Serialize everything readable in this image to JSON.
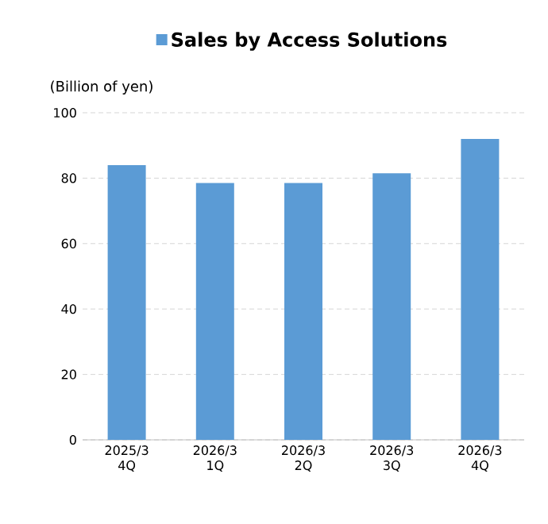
{
  "chart_data": {
    "type": "bar",
    "ylabel": "(Billion of yen)",
    "categories": [
      "2025/3 4Q",
      "2026/3 1Q",
      "2026/3 2Q",
      "2026/3 3Q",
      "2026/3 4Q"
    ],
    "series": [
      {
        "name": "Sales by Access Solutions",
        "color": "#5b9bd5",
        "values": [
          84,
          78.5,
          78.5,
          81.5,
          92
        ]
      }
    ],
    "ylim": [
      0,
      100
    ],
    "yticks": [
      0,
      20,
      40,
      60,
      80,
      100
    ],
    "grid": "y",
    "legend": "top"
  }
}
